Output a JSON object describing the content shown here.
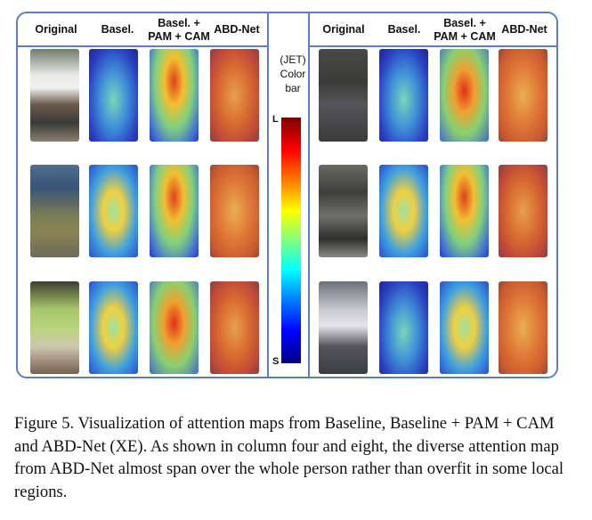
{
  "figure": {
    "left_group_headers": [
      "Original",
      "Basel.",
      "Basel. +\nPAM + CAM",
      "ABD-Net"
    ],
    "right_group_headers": [
      "Original",
      "Basel.",
      "Basel. +\nPAM + CAM",
      "ABD-Net"
    ],
    "colorbar": {
      "title_line1": "(JET)",
      "title_line2": "Color",
      "title_line3": "bar",
      "top_label": "L",
      "bottom_label": "S"
    }
  },
  "caption": {
    "text": "Figure 5. Visualization of attention maps from Baseline, Baseline + PAM + CAM and ABD-Net (XE). As shown in column four and eight, the diverse attention map from ABD-Net almost span over the whole person rather than overfit in some local regions."
  }
}
